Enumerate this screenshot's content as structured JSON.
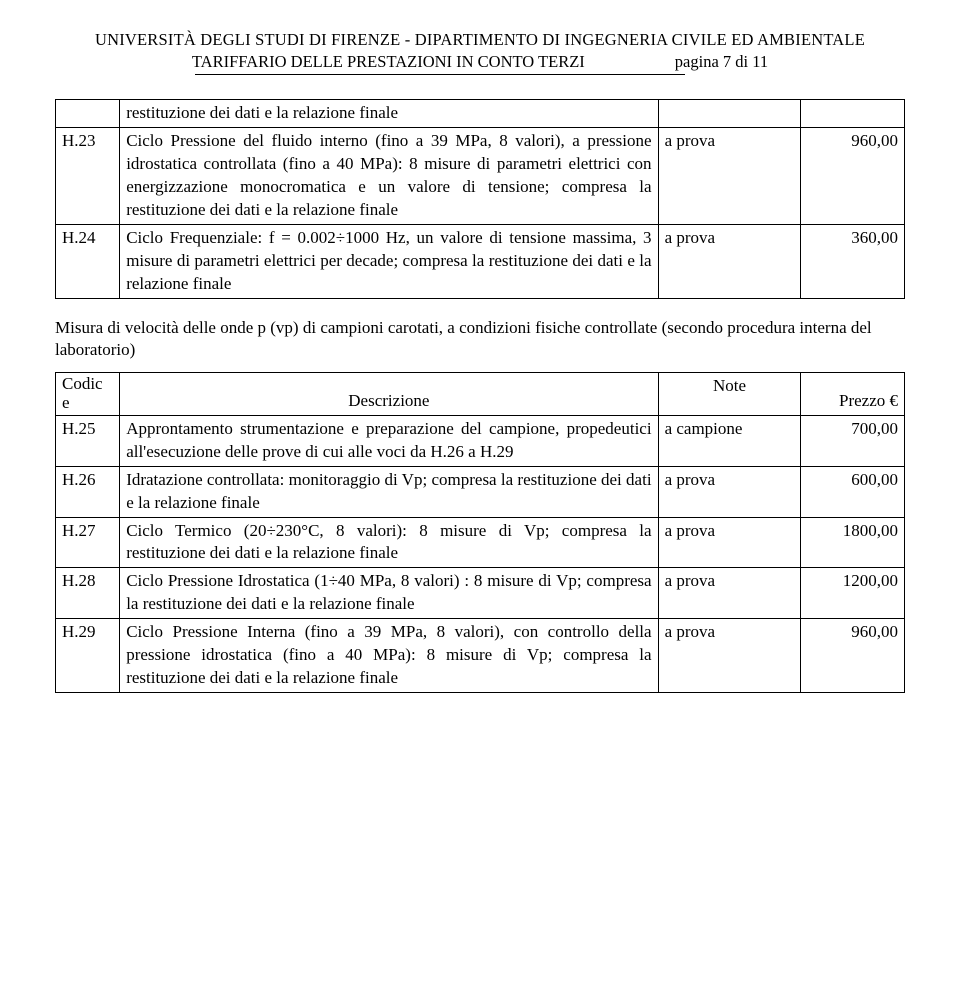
{
  "header": {
    "line1": "UNIVERSITÀ DEGLI STUDI DI FIRENZE  - DIPARTIMENTO DI INGEGNERIA CIVILE ED AMBIENTALE",
    "line2_left": "TARIFFARIO DELLE PRESTAZIONI IN CONTO TERZI",
    "line2_right": "pagina 7 di 11"
  },
  "table1": {
    "rows": [
      {
        "code": "",
        "desc": "restituzione dei dati e la relazione finale",
        "note": "",
        "price": ""
      },
      {
        "code": "H.23",
        "desc": "Ciclo Pressione del fluido interno (fino a 39 MPa, 8 valori), a pressione idrostatica controllata (fino a 40 MPa): 8 misure di parametri elettrici con energizzazione monocromatica e un valore di tensione; compresa la restituzione dei dati e la relazione finale",
        "note": "a prova",
        "price": "960,00"
      },
      {
        "code": "H.24",
        "desc": "Ciclo Frequenziale: f = 0.002÷1000 Hz, un valore di tensione massima, 3 misure di parametri elettrici per decade; compresa la restituzione dei dati e la relazione finale",
        "note": "a prova",
        "price": "360,00"
      }
    ]
  },
  "section": {
    "text": "Misura di velocità delle onde p (vp) di campioni carotati, a condizioni fisiche controllate (secondo procedura interna del laboratorio)"
  },
  "table2": {
    "header": {
      "code": "Codice",
      "desc": "Descrizione",
      "note": "Note",
      "price": "Prezzo €"
    },
    "rows": [
      {
        "code": "H.25",
        "desc": "Approntamento strumentazione e preparazione del campione, propedeutici all'esecuzione delle prove di cui alle voci da H.26 a H.29",
        "note": "a campione",
        "price": "700,00"
      },
      {
        "code": "H.26",
        "desc": "Idratazione controllata: monitoraggio di Vp; compresa la restituzione dei dati e la relazione finale",
        "note": "a prova",
        "price": "600,00"
      },
      {
        "code": "H.27",
        "desc": "Ciclo Termico (20÷230°C, 8 valori): 8 misure di Vp; compresa la restituzione dei dati e la relazione finale",
        "note": "a prova",
        "price": "1800,00"
      },
      {
        "code": "H.28",
        "desc": "Ciclo Pressione Idrostatica (1÷40 MPa, 8 valori) : 8 misure di Vp; compresa la restituzione dei dati e la relazione finale",
        "note": "a prova",
        "price": "1200,00"
      },
      {
        "code": "H.29",
        "desc": "Ciclo Pressione Interna (fino a 39 MPa, 8 valori), con controllo della pressione idrostatica (fino a 40 MPa): 8 misure di Vp; compresa la restituzione dei dati e la relazione finale",
        "note": "a prova",
        "price": "960,00"
      }
    ]
  }
}
